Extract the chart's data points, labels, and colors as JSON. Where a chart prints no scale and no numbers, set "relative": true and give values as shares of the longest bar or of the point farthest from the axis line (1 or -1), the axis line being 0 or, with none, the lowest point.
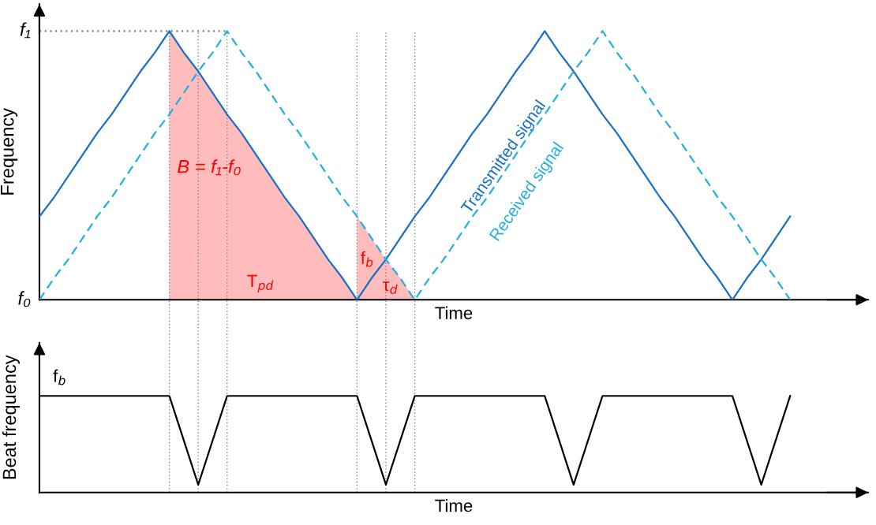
{
  "chart_data": [
    {
      "type": "line",
      "xlabel": "Time",
      "ylabel": "Frequency",
      "relative": true,
      "grid": "x",
      "categories": [
        null,
        null,
        null,
        null,
        null,
        null,
        null,
        null,
        null,
        null,
        null,
        null,
        null,
        null,
        null,
        null,
        null,
        null,
        null,
        null,
        null,
        null,
        null,
        null,
        null,
        null,
        null,
        null,
        null,
        null,
        null,
        null,
        null,
        null,
        null,
        null,
        null,
        null,
        null,
        null,
        null,
        null,
        null,
        null,
        null,
        null,
        null,
        null,
        null,
        null,
        null,
        null,
        null
      ],
      "series": [
        {
          "type": "area",
          "color": "#ffbcbc",
          "values": [
            null,
            null,
            null,
            null,
            null,
            null,
            null,
            null,
            null,
            1.0,
            0.92,
            0.85,
            0.77,
            0.69,
            0.62,
            0.54,
            0.46,
            0.38,
            0.31,
            0.23,
            0.15,
            0.08,
            0.0,
            null,
            null,
            null,
            null,
            null,
            null,
            null,
            null,
            null,
            null,
            null,
            null,
            null,
            null,
            null,
            null,
            null,
            null,
            null,
            null,
            null,
            null,
            null,
            null,
            null,
            null,
            null,
            null,
            null,
            null
          ]
        },
        {
          "type": "area",
          "color": "#ffbcbc",
          "values": [
            null,
            null,
            null,
            null,
            null,
            null,
            null,
            null,
            null,
            null,
            null,
            null,
            null,
            null,
            null,
            null,
            null,
            null,
            null,
            null,
            null,
            null,
            0.31,
            0.23,
            0.15,
            0.08,
            0.0,
            null,
            null,
            null,
            null,
            null,
            null,
            null,
            null,
            null,
            null,
            null,
            null,
            null,
            null,
            null,
            null,
            null,
            null,
            null,
            null,
            null,
            null,
            null,
            null,
            null,
            null
          ]
        },
        {
          "color": "#808080",
          "line_style": "dotted",
          "values": [
            1,
            1,
            1,
            1,
            1,
            1,
            1,
            1,
            1,
            1,
            1,
            1,
            1,
            1,
            null,
            null,
            null,
            null,
            null,
            null,
            null,
            null,
            null,
            null,
            null,
            null,
            null,
            null,
            null,
            null,
            null,
            null,
            null,
            null,
            null,
            null,
            null,
            null,
            null,
            null,
            null,
            null,
            null,
            null,
            null,
            null,
            null,
            null,
            null,
            null,
            null,
            null,
            null
          ]
        },
        {
          "name": "Transmitted signal",
          "color": "#1a6fc4",
          "line_style": "solid",
          "values": [
            0.31,
            0.38,
            0.46,
            0.54,
            0.62,
            0.69,
            0.77,
            0.85,
            0.92,
            1.0,
            0.92,
            0.85,
            0.77,
            0.69,
            0.62,
            0.54,
            0.46,
            0.38,
            0.31,
            0.23,
            0.15,
            0.08,
            0.0,
            0.08,
            0.15,
            0.23,
            0.31,
            0.38,
            0.46,
            0.54,
            0.62,
            0.69,
            0.77,
            0.85,
            0.92,
            1.0,
            0.92,
            0.85,
            0.77,
            0.69,
            0.62,
            0.54,
            0.46,
            0.38,
            0.31,
            0.23,
            0.15,
            0.08,
            0.0,
            0.08,
            0.15,
            0.23,
            0.31
          ]
        },
        {
          "name": "Received signal",
          "color": "#22b0e0",
          "line_style": "dashed",
          "values": [
            0.0,
            0.08,
            0.15,
            0.23,
            0.31,
            0.38,
            0.46,
            0.54,
            0.62,
            0.69,
            0.77,
            0.85,
            0.92,
            1.0,
            0.92,
            0.85,
            0.77,
            0.69,
            0.62,
            0.54,
            0.46,
            0.38,
            0.31,
            0.23,
            0.15,
            0.08,
            0.0,
            0.08,
            0.15,
            0.23,
            0.31,
            0.38,
            0.46,
            0.54,
            0.62,
            0.69,
            0.77,
            0.85,
            0.92,
            1.0,
            0.92,
            0.85,
            0.77,
            0.69,
            0.62,
            0.54,
            0.46,
            0.38,
            0.31,
            0.23,
            0.15,
            0.08,
            0.0
          ]
        }
      ],
      "annotations": [
        "B = f₁-f₀",
        "T$_{pd}$",
        "f$_{b}$",
        "τ$_{d}$",
        "f₁",
        "f₀"
      ]
    },
    {
      "type": "line",
      "xlabel": "Time",
      "ylabel": "Beat frequency",
      "relative": true,
      "grid": "x",
      "categories": [
        null,
        null,
        null,
        null,
        null,
        null,
        null,
        null,
        null,
        null,
        null,
        null,
        null,
        null,
        null,
        null,
        null,
        null,
        null,
        null,
        null,
        null,
        null,
        null,
        null,
        null,
        null,
        null,
        null,
        null,
        null,
        null,
        null,
        null,
        null,
        null,
        null,
        null,
        null,
        null,
        null,
        null,
        null,
        null,
        null,
        null,
        null,
        null,
        null,
        null,
        null,
        null,
        null
      ],
      "series": [
        {
          "color": "#000000",
          "line_style": "solid",
          "values": [
            1,
            1,
            1,
            1,
            1,
            1,
            1,
            1,
            1,
            1,
            0.54,
            0.08,
            0.54,
            1,
            1,
            1,
            1,
            1,
            1,
            1,
            1,
            1,
            1,
            0.54,
            0.08,
            0.54,
            1,
            1,
            1,
            1,
            1,
            1,
            1,
            1,
            1,
            1,
            0.54,
            0.08,
            0.54,
            1,
            1,
            1,
            1,
            1,
            1,
            1,
            1,
            1,
            1,
            0.54,
            0.08,
            0.54,
            1
          ]
        }
      ],
      "annotations": [
        "f$_{b}$"
      ]
    }
  ]
}
